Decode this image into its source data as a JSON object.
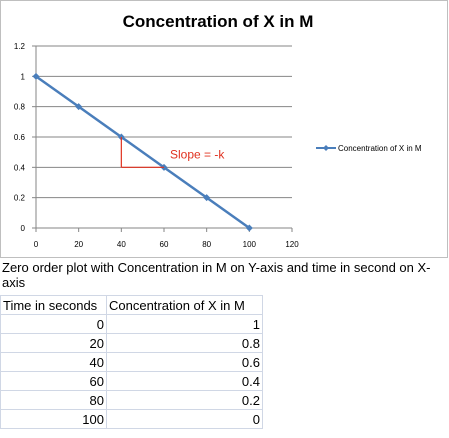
{
  "chart_data": {
    "type": "line",
    "title": "Concentration of X in M",
    "xlabel": "",
    "ylabel": "",
    "x": [
      0,
      20,
      40,
      60,
      80,
      100
    ],
    "series": [
      {
        "name": "Concentration of X in M",
        "values": [
          1,
          0.8,
          0.6,
          0.4,
          0.2,
          0
        ],
        "color": "#4a7ebb"
      }
    ],
    "xlim": [
      0,
      120
    ],
    "ylim": [
      0,
      1.2
    ],
    "x_ticks": [
      "0",
      "20",
      "40",
      "60",
      "80",
      "100",
      "120"
    ],
    "y_ticks": [
      "0",
      "0.2",
      "0.4",
      "0.6",
      "0.8",
      "1",
      "1.2"
    ],
    "grid": "horizontal",
    "legend": "right",
    "annotation": {
      "text": "Slope = -k",
      "color": "#e0301e",
      "triangle": {
        "x_start": 40,
        "x_end": 60,
        "y_top": 0.6,
        "y_bottom": 0.4
      }
    }
  },
  "caption": "Zero order plot with Concentration in M on Y-axis and time in second on X-axis",
  "table": {
    "headers": [
      "Time in seconds",
      "Concentration of X in M"
    ],
    "rows": [
      [
        "0",
        "1"
      ],
      [
        "20",
        "0.8"
      ],
      [
        "40",
        "0.6"
      ],
      [
        "60",
        "0.4"
      ],
      [
        "80",
        "0.2"
      ],
      [
        "100",
        "0"
      ]
    ]
  }
}
